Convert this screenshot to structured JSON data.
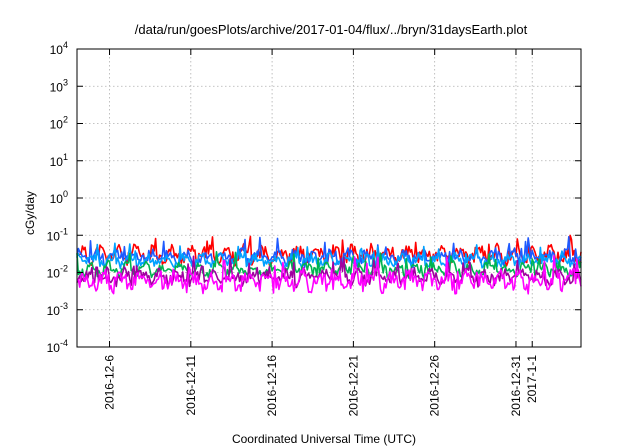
{
  "chart_data": {
    "type": "line",
    "title": "/data/run/goesPlots/archive/2017-01-04/flux/../bryn/31daysEarth.plot",
    "xlabel": "Coordinated Universal Time (UTC)",
    "ylabel": "cGy/day",
    "yscale": "log",
    "ylim": [
      0.0001,
      10000
    ],
    "y_ticks": [
      {
        "base": "10",
        "exp": "-4"
      },
      {
        "base": "10",
        "exp": "-3"
      },
      {
        "base": "10",
        "exp": "-2"
      },
      {
        "base": "10",
        "exp": "-1"
      },
      {
        "base": "10",
        "exp": "0"
      },
      {
        "base": "10",
        "exp": "1"
      },
      {
        "base": "10",
        "exp": "2"
      },
      {
        "base": "10",
        "exp": "3"
      },
      {
        "base": "10",
        "exp": "4"
      }
    ],
    "xlim": [
      "2016-12-04",
      "2017-01-04"
    ],
    "x_ticks": [
      "2016-12-6",
      "2016-12-11",
      "2016-12-16",
      "2016-12-21",
      "2016-12-26",
      "2016-12-31",
      "2017-1-1"
    ],
    "grid": true,
    "series": [
      {
        "color": "#ff0000",
        "base": 0.03,
        "amp": 0.22,
        "seed": 11,
        "x": [
          "2016-12-04",
          "2017-01-04"
        ]
      },
      {
        "color": "#1e5aff",
        "base": 0.026,
        "amp": 0.2,
        "seed": 23,
        "x": [
          "2016-12-04",
          "2017-01-04"
        ]
      },
      {
        "color": "#00a0ff",
        "base": 0.021,
        "amp": 0.16,
        "seed": 37,
        "x": [
          "2016-12-04",
          "2017-01-04"
        ]
      },
      {
        "color": "#00b450",
        "base": 0.012,
        "amp": 0.18,
        "seed": 41,
        "x": [
          "2016-12-04",
          "2017-01-04"
        ]
      },
      {
        "color": "#a000a0",
        "base": 0.0075,
        "amp": 0.2,
        "seed": 53,
        "x": [
          "2016-12-04",
          "2017-01-04"
        ]
      },
      {
        "color": "#ff00ff",
        "base": 0.006,
        "amp": 0.26,
        "seed": 67,
        "x": [
          "2016-12-04",
          "2017-01-04"
        ]
      }
    ]
  }
}
